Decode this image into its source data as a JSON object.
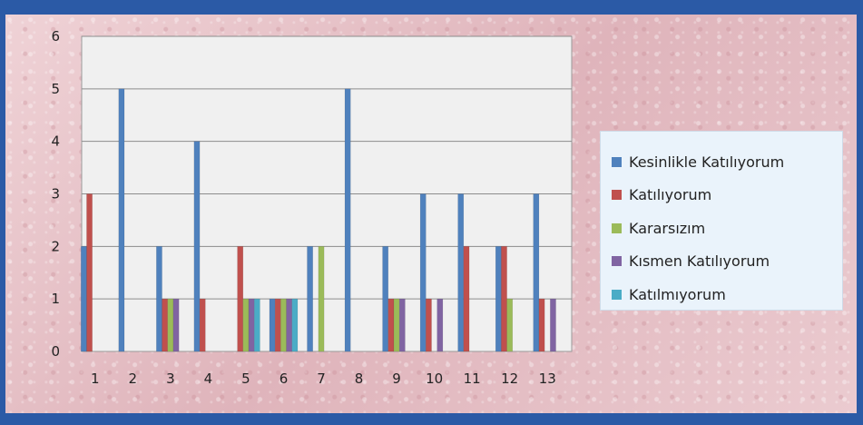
{
  "chart_data": {
    "type": "bar",
    "categories": [
      "1",
      "2",
      "3",
      "4",
      "5",
      "6",
      "7",
      "8",
      "9",
      "10",
      "11",
      "12",
      "13"
    ],
    "series": [
      {
        "name": "Kesinlikle  Katılıyorum",
        "color": "#4f81bd",
        "values": [
          2,
          5,
          2,
          4,
          0,
          1,
          2,
          5,
          2,
          3,
          3,
          2,
          3
        ]
      },
      {
        "name": "Katılıyorum",
        "color": "#c0504d",
        "values": [
          3,
          0,
          1,
          1,
          2,
          1,
          0,
          0,
          1,
          1,
          2,
          2,
          1
        ]
      },
      {
        "name": "Kararsızım",
        "color": "#9bbb59",
        "values": [
          0,
          0,
          1,
          0,
          1,
          1,
          2,
          0,
          1,
          0,
          0,
          1,
          0
        ]
      },
      {
        "name": "Kısmen Katılıyorum",
        "color": "#8064a2",
        "values": [
          0,
          0,
          1,
          0,
          1,
          1,
          0,
          0,
          1,
          1,
          0,
          0,
          1
        ]
      },
      {
        "name": "Katılmıyorum",
        "color": "#4bacc6",
        "values": [
          0,
          0,
          0,
          0,
          1,
          1,
          0,
          0,
          0,
          0,
          0,
          0,
          0
        ]
      }
    ],
    "y_ticks": [
      "0",
      "1",
      "2",
      "3",
      "4",
      "5",
      "6"
    ],
    "ylim": [
      0,
      6
    ],
    "grid": true,
    "legend_position": "right"
  }
}
